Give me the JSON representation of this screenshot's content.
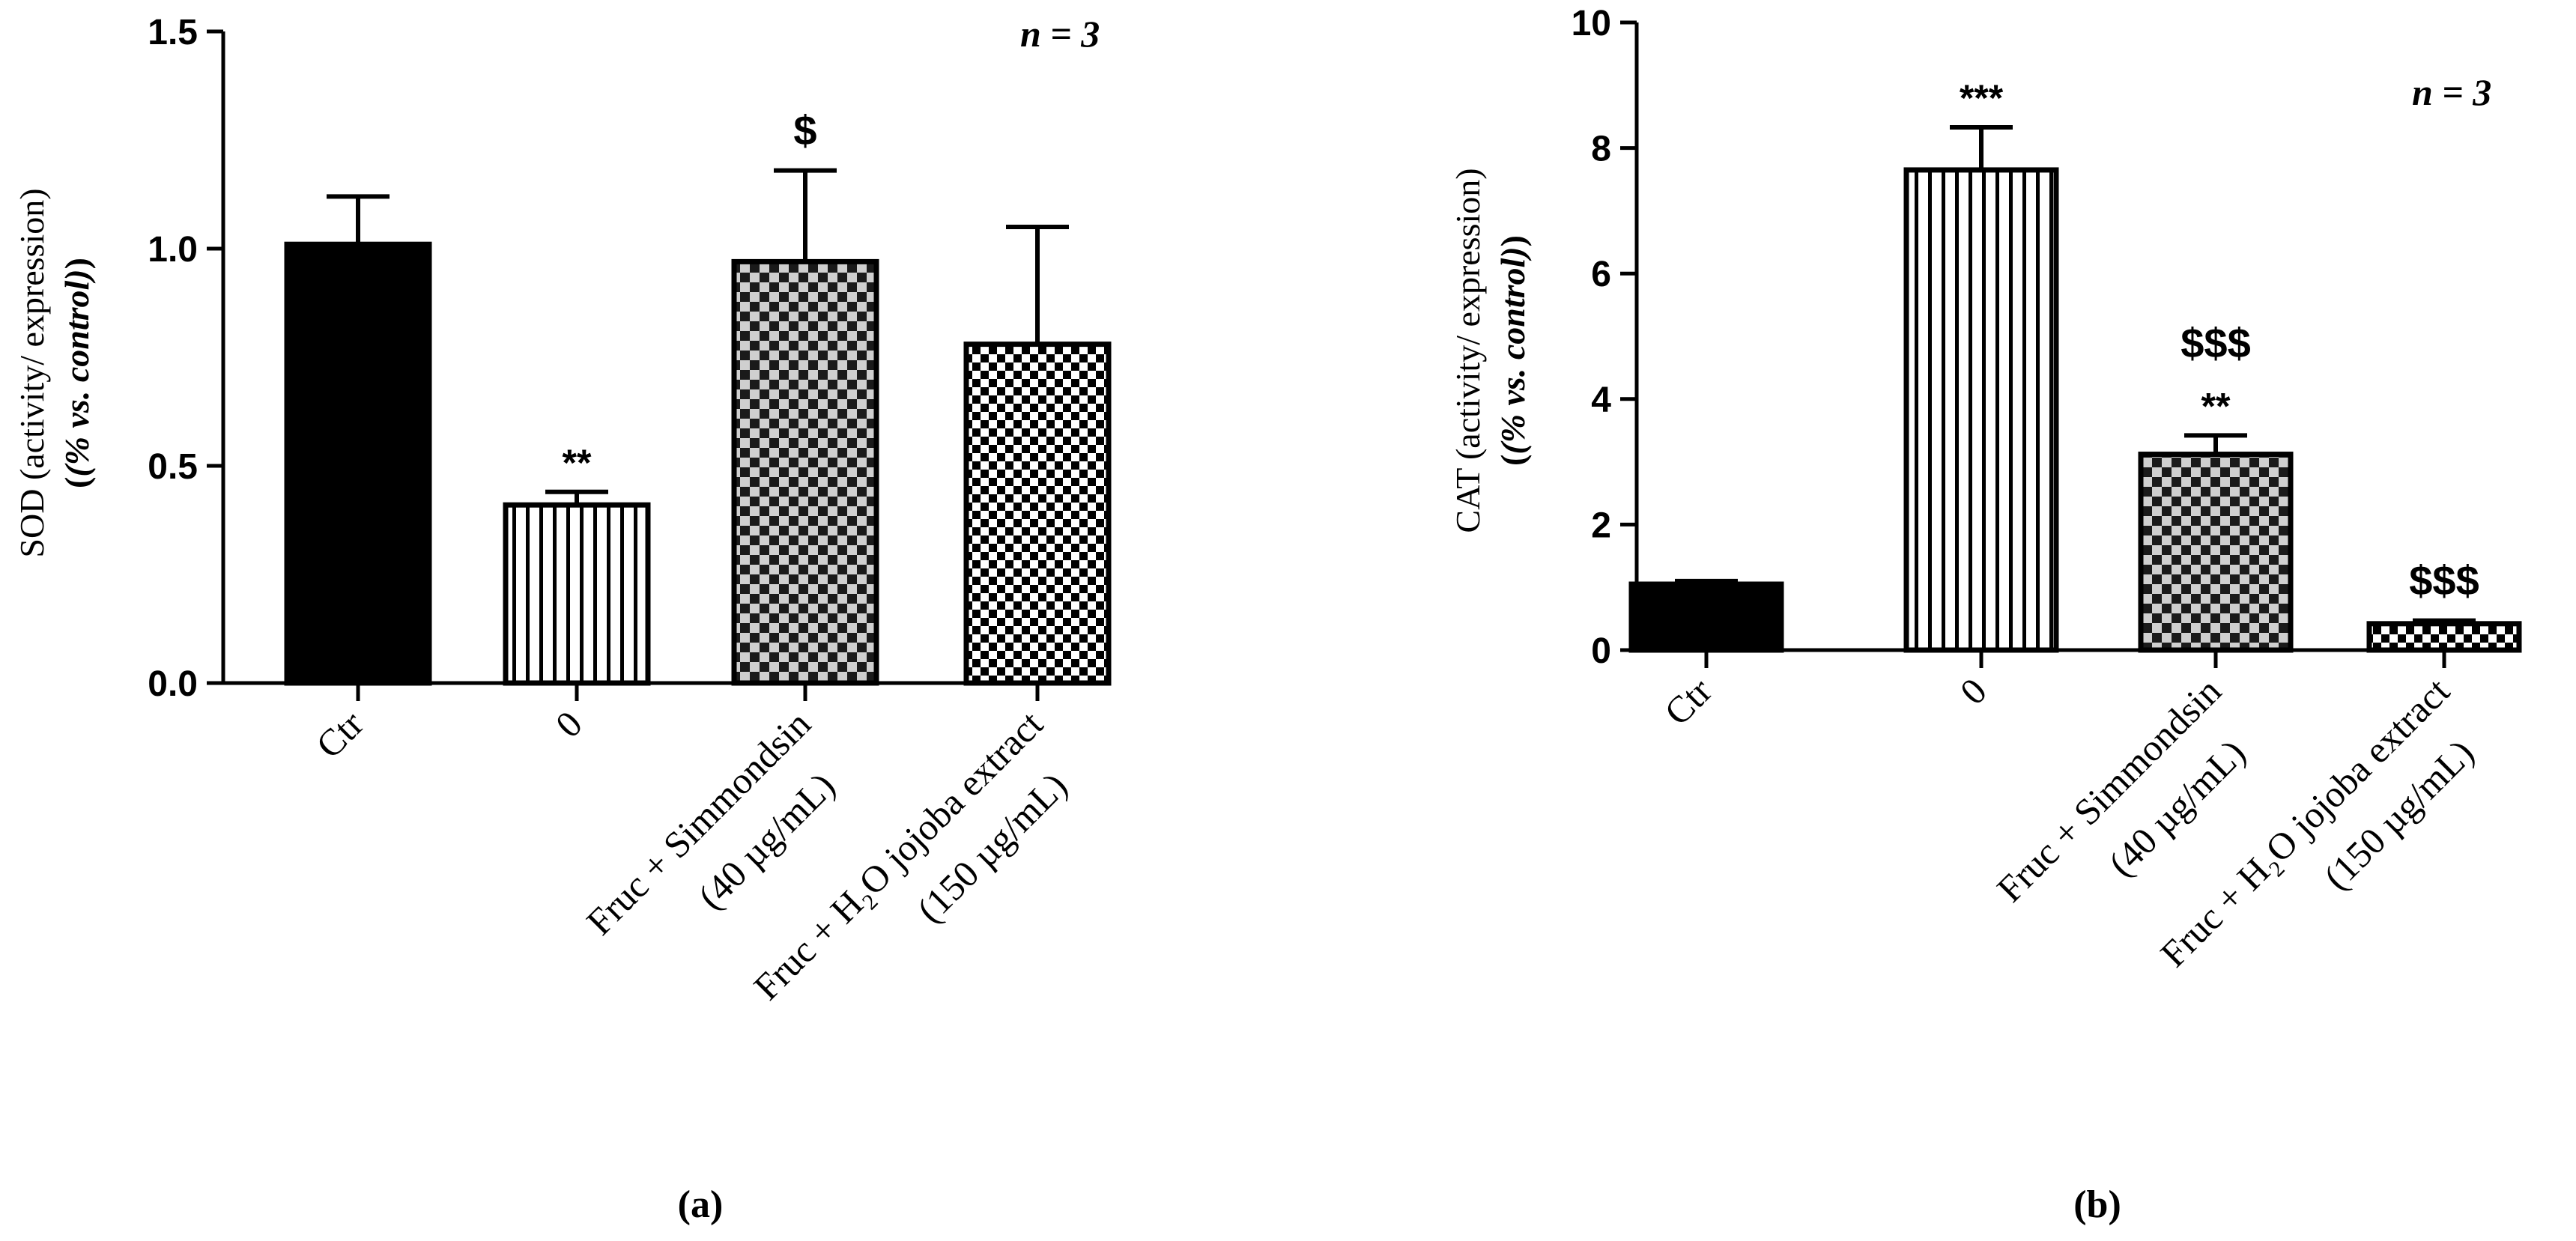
{
  "figure": {
    "panels": [
      "(a)",
      "(b)"
    ]
  },
  "chart_data": [
    {
      "type": "bar",
      "panel": "(a)",
      "ylabel_main": "SOD (activity/ expression)",
      "ylabel_sub": "(% vs. control)",
      "n_label": "n = 3",
      "ylim": [
        0,
        1.5
      ],
      "yticks": [
        0.0,
        0.5,
        1.0,
        1.5
      ],
      "ytick_labels": [
        "0.0",
        "0.5",
        "1.0",
        "1.5"
      ],
      "categories": [
        [
          "Ctr"
        ],
        [
          "0"
        ],
        [
          "Fruc + Simmondsin",
          "(40 µg/mL)"
        ],
        [
          "Fruc + H₂O jojoba extract",
          "(150 µg/mL)"
        ]
      ],
      "values": [
        1.01,
        0.41,
        0.97,
        0.78
      ],
      "errors": [
        0.11,
        0.03,
        0.21,
        0.27
      ],
      "annotations": [
        [],
        [
          "**"
        ],
        [
          "$"
        ],
        []
      ],
      "patterns": [
        "solid",
        "vlines",
        "checker",
        "checker-fine"
      ]
    },
    {
      "type": "bar",
      "panel": "(b)",
      "ylabel_main": "CAT (activity/ expression)",
      "ylabel_sub": "(% vs. control)",
      "n_label": "n = 3",
      "ylim": [
        0,
        10
      ],
      "yticks": [
        0,
        2,
        4,
        6,
        8,
        10
      ],
      "ytick_labels": [
        "0",
        "2",
        "4",
        "6",
        "8",
        "10"
      ],
      "categories": [
        [
          "Ctr"
        ],
        [
          "0"
        ],
        [
          "Fruc + Simmondsin",
          "(40 µg/mL)"
        ],
        [
          "Fruc + H₂O jojoba extract",
          "(150 µg/mL)"
        ]
      ],
      "values": [
        1.05,
        7.65,
        3.12,
        0.42
      ],
      "errors": [
        0.05,
        0.68,
        0.3,
        0.05
      ],
      "annotations": [
        [],
        [
          "***"
        ],
        [
          "$$$",
          "**"
        ],
        [
          "$$$"
        ]
      ],
      "patterns": [
        "solid",
        "vlines",
        "checker",
        "checker-fine"
      ]
    }
  ]
}
